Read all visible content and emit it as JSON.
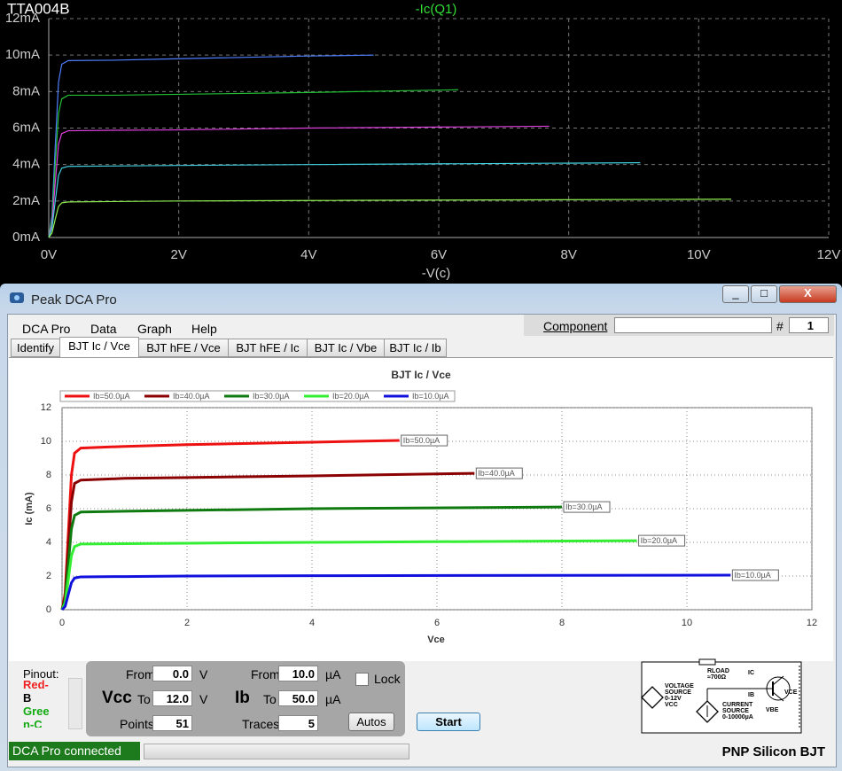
{
  "chart_data": [
    {
      "type": "line",
      "title": "TTA004B",
      "trace_label": "-Ic(Q1)",
      "trace_color": "#33dd33",
      "x_label": "-V(c)",
      "grid": true,
      "xlim": [
        0,
        12
      ],
      "xticks": [
        {
          "value": 0,
          "label": "0V"
        },
        {
          "value": 2,
          "label": "2V"
        },
        {
          "value": 4,
          "label": "4V"
        },
        {
          "value": 6,
          "label": "6V"
        },
        {
          "value": 8,
          "label": "8V"
        },
        {
          "value": 10,
          "label": "10V"
        },
        {
          "value": 12,
          "label": "12V"
        }
      ],
      "ylim": [
        0,
        12
      ],
      "yticks": [
        {
          "value": 0,
          "label": "0mA"
        },
        {
          "value": 2,
          "label": "2mA"
        },
        {
          "value": 4,
          "label": "4mA"
        },
        {
          "value": 6,
          "label": "6mA"
        },
        {
          "value": 8,
          "label": "8mA"
        },
        {
          "value": 10,
          "label": "10mA"
        },
        {
          "value": 12,
          "label": "12mA"
        }
      ],
      "series": [
        {
          "color": "#4f7fff",
          "x": [
            0,
            0.05,
            0.1,
            0.15,
            0.2,
            0.3,
            1,
            2,
            4,
            5.0
          ],
          "values": [
            0,
            1.2,
            5.0,
            8.5,
            9.5,
            9.7,
            9.72,
            9.8,
            9.95,
            10.0
          ]
        },
        {
          "color": "#22c033",
          "x": [
            0,
            0.05,
            0.1,
            0.15,
            0.2,
            0.3,
            1,
            2,
            4,
            6.3
          ],
          "values": [
            0,
            1.0,
            4.0,
            6.8,
            7.6,
            7.8,
            7.8,
            7.85,
            7.95,
            8.1
          ]
        },
        {
          "color": "#e040e0",
          "x": [
            0,
            0.05,
            0.1,
            0.15,
            0.2,
            0.3,
            1,
            2,
            4,
            7.7
          ],
          "values": [
            0,
            0.7,
            3.0,
            5.1,
            5.7,
            5.85,
            5.88,
            5.9,
            6.0,
            6.1
          ]
        },
        {
          "color": "#40d0e0",
          "x": [
            0,
            0.05,
            0.1,
            0.15,
            0.2,
            0.3,
            1,
            2,
            4,
            9.1
          ],
          "values": [
            0,
            0.5,
            2.0,
            3.4,
            3.8,
            3.9,
            3.92,
            3.95,
            4.0,
            4.1
          ]
        },
        {
          "color": "#90f050",
          "x": [
            0,
            0.05,
            0.1,
            0.15,
            0.2,
            0.3,
            1,
            2,
            4,
            10.5
          ],
          "values": [
            0,
            0.25,
            1.0,
            1.7,
            1.9,
            1.95,
            1.97,
            2.0,
            2.03,
            2.1
          ]
        }
      ]
    },
    {
      "type": "line",
      "title": "BJT Ic / Vce",
      "x_label": "Vce",
      "y_label": "Ic (mA)",
      "grid": true,
      "xlim": [
        0,
        12
      ],
      "xticks": [
        0,
        2,
        4,
        6,
        8,
        10,
        12
      ],
      "ylim": [
        0,
        12
      ],
      "yticks": [
        0,
        2,
        4,
        6,
        8,
        10,
        12
      ],
      "series": [
        {
          "name": "Ib=50.0µA",
          "color": "#ee1111",
          "x": [
            0,
            0.05,
            0.1,
            0.15,
            0.2,
            0.3,
            1,
            2,
            4,
            5.4
          ],
          "values": [
            0,
            1,
            4.5,
            8,
            9.3,
            9.6,
            9.7,
            9.8,
            9.95,
            10.05
          ]
        },
        {
          "name": "Ib=40.0µA",
          "color": "#8b0000",
          "x": [
            0,
            0.05,
            0.1,
            0.15,
            0.2,
            0.3,
            1,
            2,
            4,
            6.6
          ],
          "values": [
            0,
            0.8,
            3.6,
            6.4,
            7.5,
            7.7,
            7.8,
            7.85,
            7.95,
            8.1
          ]
        },
        {
          "name": "Ib=30.0µA",
          "color": "#0f7a0f",
          "x": [
            0,
            0.05,
            0.1,
            0.15,
            0.2,
            0.3,
            1,
            2,
            4,
            8.0
          ],
          "values": [
            0,
            0.6,
            2.7,
            4.8,
            5.6,
            5.8,
            5.85,
            5.9,
            6.0,
            6.1
          ]
        },
        {
          "name": "Ib=20.0µA",
          "color": "#33ee33",
          "x": [
            0,
            0.05,
            0.1,
            0.15,
            0.2,
            0.3,
            1,
            2,
            4,
            9.2
          ],
          "values": [
            0,
            0.4,
            1.8,
            3.2,
            3.75,
            3.9,
            3.92,
            3.95,
            4.0,
            4.1
          ]
        },
        {
          "name": "Ib=10.0µA",
          "color": "#1111dd",
          "x": [
            0,
            0.05,
            0.1,
            0.15,
            0.2,
            0.3,
            1,
            2,
            4,
            10.7
          ],
          "values": [
            0,
            0.2,
            0.9,
            1.6,
            1.88,
            1.95,
            1.97,
            2.0,
            2.02,
            2.05
          ]
        }
      ]
    }
  ],
  "window": {
    "title": "Peak DCA Pro",
    "menu": [
      "DCA Pro",
      "Data",
      "Graph",
      "Help"
    ],
    "component_label": "Component",
    "number_label": "#",
    "number_value": "1",
    "tabs": [
      "Identify",
      "BJT Ic / Vce",
      "BJT hFE / Vce",
      "BJT hFE / Ic",
      "BJT Ic / Vbe",
      "BJT Ic / Ib"
    ],
    "pinout": {
      "label": "Pinout:",
      "lines": [
        "Red-",
        "B",
        "Gree",
        "n-C"
      ]
    },
    "vcc": {
      "label": "Vcc",
      "from_label": "From",
      "from": "0.0",
      "from_unit": "V",
      "to_label": "To",
      "to": "12.0",
      "to_unit": "V",
      "points_label": "Points",
      "points": "51"
    },
    "ib": {
      "label": "Ib",
      "from_label": "From",
      "from": "10.0",
      "from_unit": "µA",
      "to_label": "To",
      "to": "50.0",
      "to_unit": "µA",
      "traces_label": "Traces",
      "traces": "5"
    },
    "lock": "Lock",
    "autos": "Autos",
    "start": "Start",
    "circuit": {
      "rload": "RLOAD",
      "rload_value": "≈700Ω",
      "ic": "IC",
      "ib": "IB",
      "vbe": "VBE",
      "vce": "VCE",
      "voltage_source": [
        "VOLTAGE",
        "SOURCE",
        "0-12V",
        "VCC"
      ],
      "current_source": [
        "CURRENT",
        "SOURCE",
        "0-10000µA"
      ]
    },
    "status": "DCA Pro connected",
    "device": "PNP Silicon BJT"
  }
}
